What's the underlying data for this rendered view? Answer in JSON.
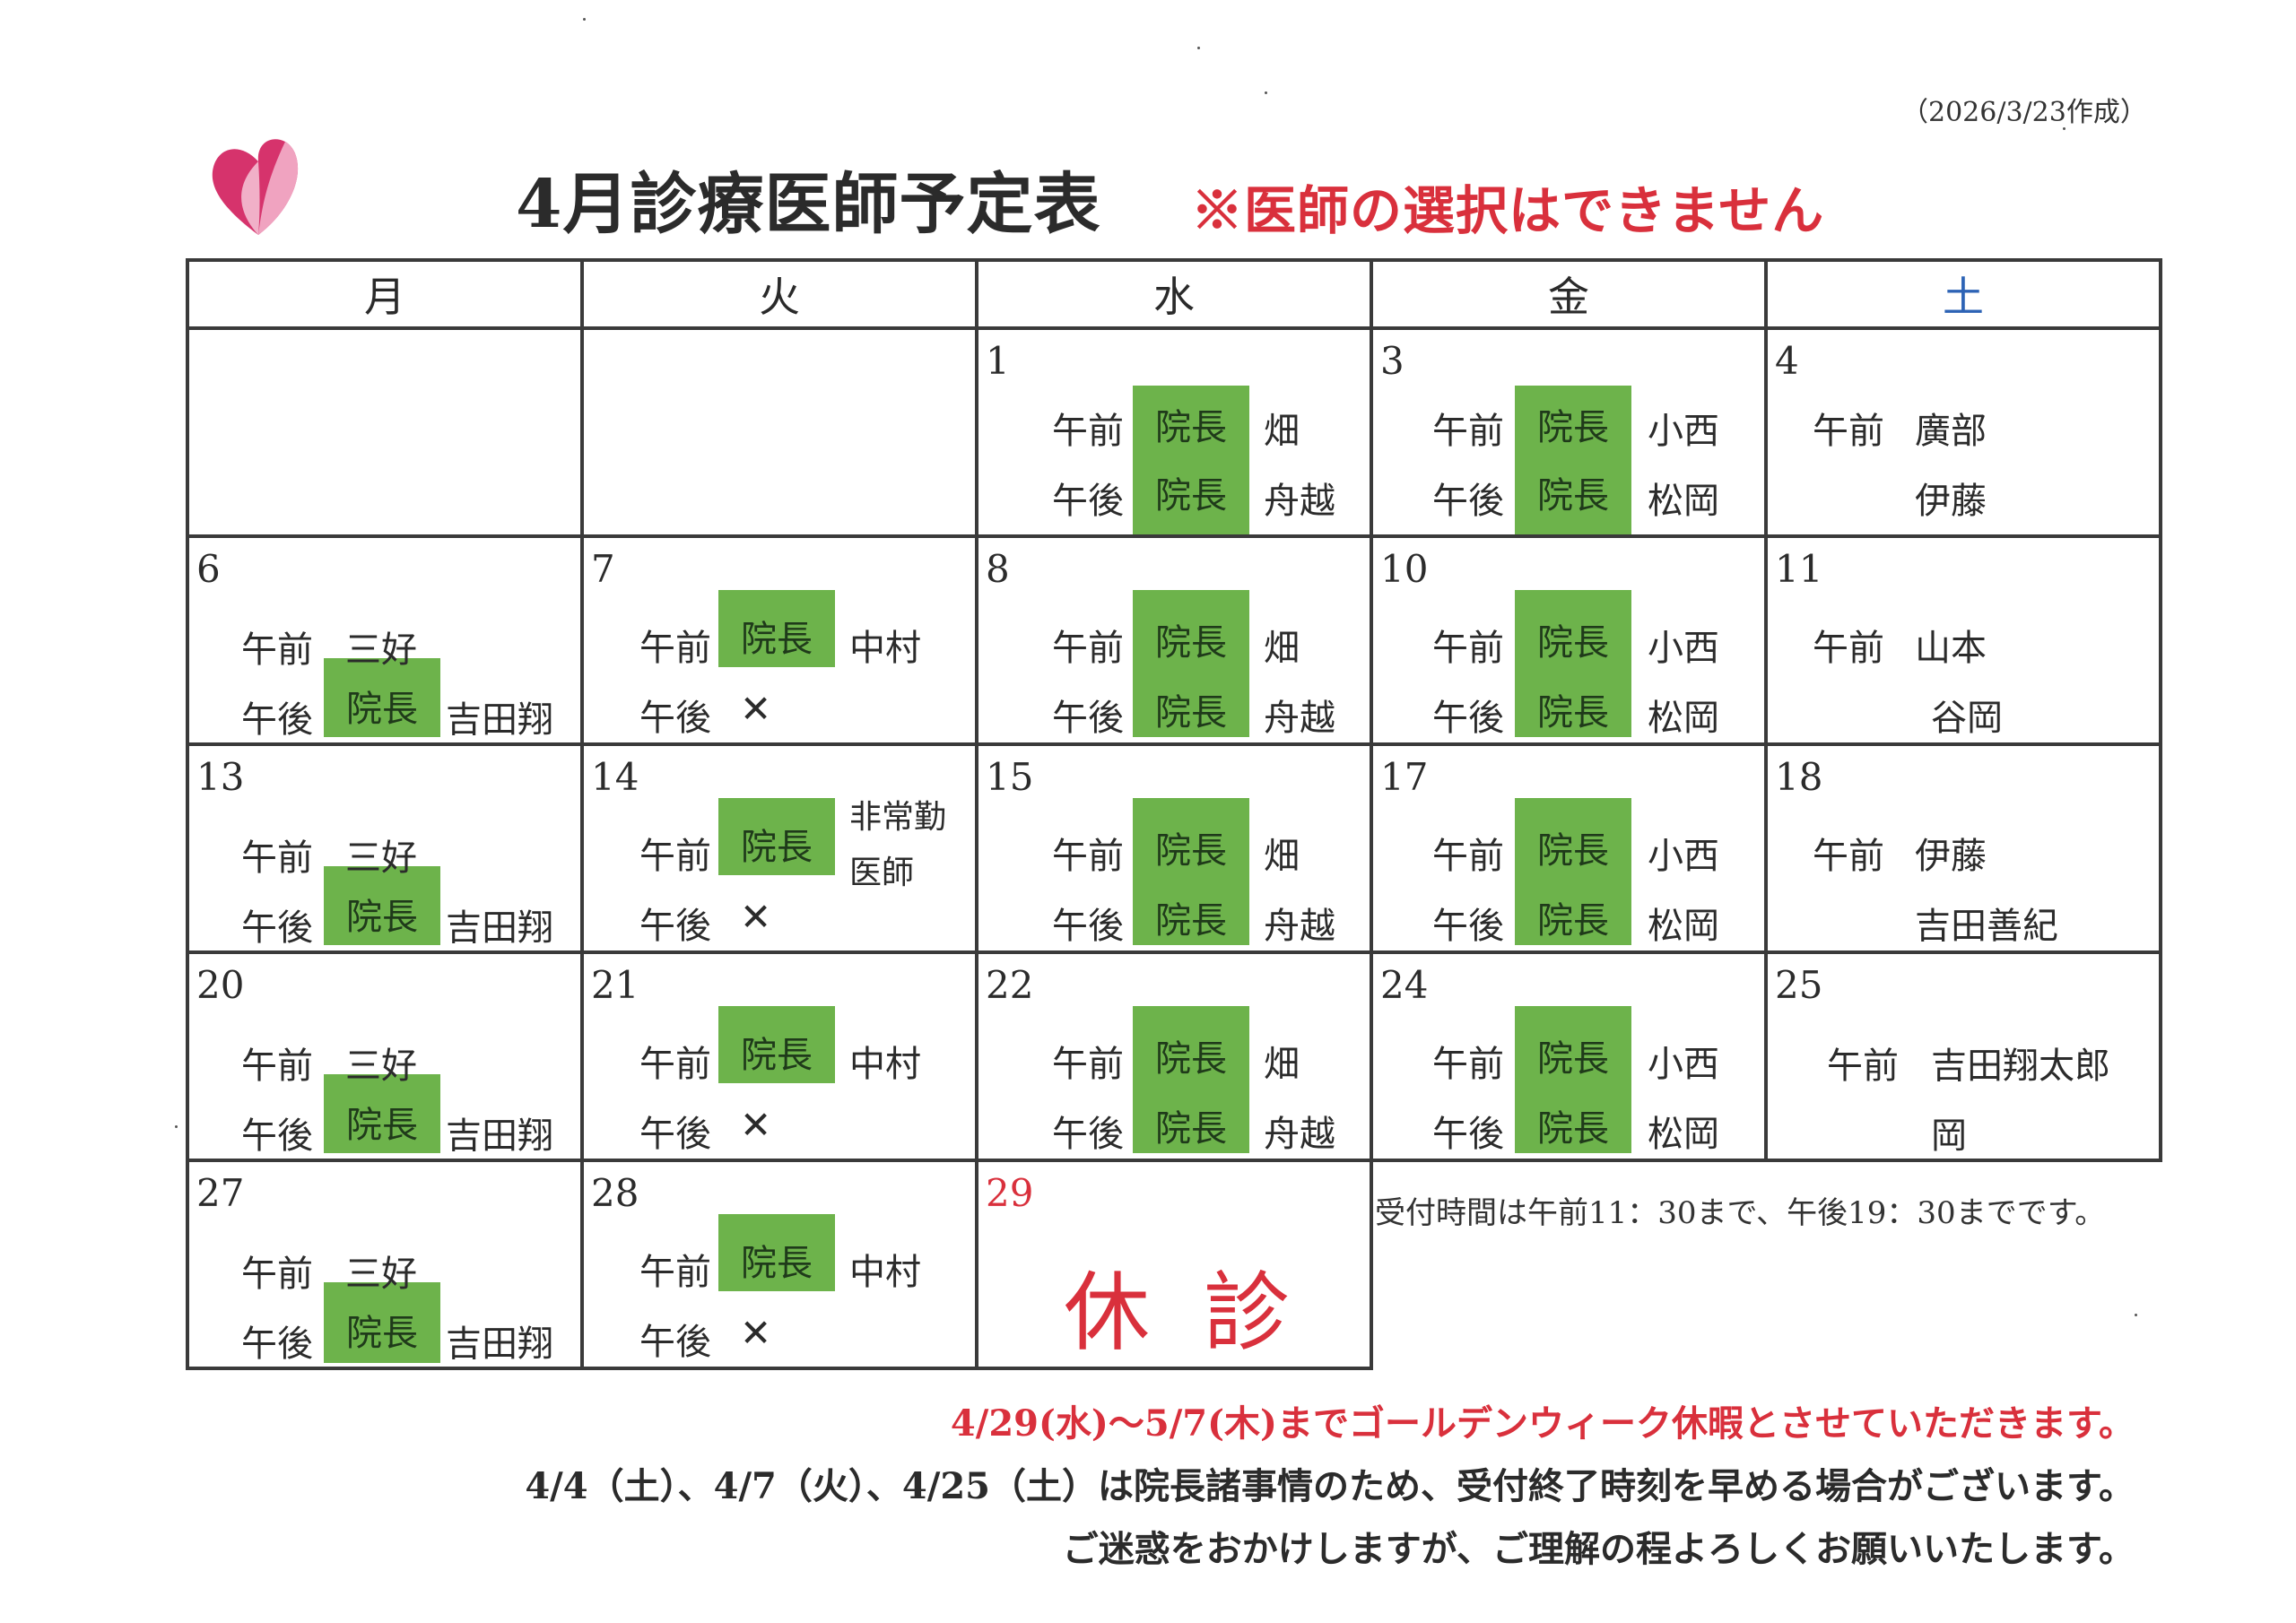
{
  "header": {
    "created": "（2026/3/23作成）",
    "title": "4月診療医師予定表",
    "note": "※医師の選択はできません"
  },
  "weekdays": [
    "月",
    "火",
    "水",
    "金",
    "土"
  ],
  "colors": {
    "saturday": "#2d63b5",
    "director_cell": "#6db34b",
    "alert": "#d9303c"
  },
  "labels": {
    "am": "午前",
    "pm": "午後",
    "director": "院長",
    "closed_mark": "✕"
  },
  "days": [
    {
      "date": "1",
      "am_doc": "畑",
      "pm_doc": "舟越"
    },
    {
      "date": "3",
      "am_doc": "小西",
      "pm_doc": "松岡"
    },
    {
      "date": "4",
      "am_doc": "廣部",
      "pm_doc": "伊藤"
    },
    {
      "date": "6",
      "am_doc": "三好",
      "pm_doc": "吉田翔"
    },
    {
      "date": "7",
      "am_doc": "中村"
    },
    {
      "date": "8",
      "am_doc": "畑",
      "pm_doc": "舟越"
    },
    {
      "date": "10",
      "am_doc": "小西",
      "pm_doc": "松岡"
    },
    {
      "date": "11",
      "am_doc": "山本",
      "pm_doc": "谷岡"
    },
    {
      "date": "13",
      "am_doc": "三好",
      "pm_doc": "吉田翔"
    },
    {
      "date": "14",
      "am_doc_line1": "非常勤",
      "am_doc_line2": "医師"
    },
    {
      "date": "15",
      "am_doc": "畑",
      "pm_doc": "舟越"
    },
    {
      "date": "17",
      "am_doc": "小西",
      "pm_doc": "松岡"
    },
    {
      "date": "18",
      "am_doc": "伊藤",
      "pm_doc": "吉田善紀"
    },
    {
      "date": "20",
      "am_doc": "三好",
      "pm_doc": "吉田翔"
    },
    {
      "date": "21",
      "am_doc": "中村"
    },
    {
      "date": "22",
      "am_doc": "畑",
      "pm_doc": "舟越"
    },
    {
      "date": "24",
      "am_doc": "小西",
      "pm_doc": "松岡"
    },
    {
      "date": "25",
      "am_doc": "吉田翔太郎",
      "pm_doc": "岡"
    },
    {
      "date": "27",
      "am_doc": "三好",
      "pm_doc": "吉田翔"
    },
    {
      "date": "28",
      "am_doc": "中村"
    },
    {
      "date": "29",
      "holiday": "休診"
    }
  ],
  "reception_note": "受付時間は午前11：30まで、午後19：30までです。",
  "footnotes": [
    "4/29(水)～5/7(木)までゴールデンウィーク休暇とさせていただきます。",
    "4/4（土）、4/7（火）、4/25（土）は院長諸事情のため、受付終了時刻を早める場合がございます。",
    "ご迷惑をおかけしますが、ご理解の程よろしくお願いいたします。"
  ]
}
